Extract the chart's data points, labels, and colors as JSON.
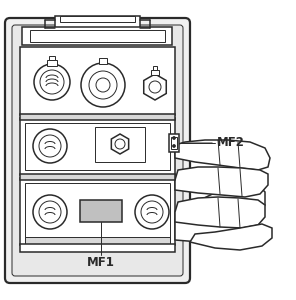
{
  "bg_color": "#ffffff",
  "line_color": "#2a2a2a",
  "gray_fill": "#c0c0c0",
  "light_fill": "#f0f0f0",
  "white_fill": "#ffffff",
  "label_mf1": "MF1",
  "label_mf2": "MF2",
  "figsize": [
    2.96,
    3.0
  ],
  "dpi": 100,
  "lw_heavy": 1.6,
  "lw_mid": 1.1,
  "lw_thin": 0.7
}
